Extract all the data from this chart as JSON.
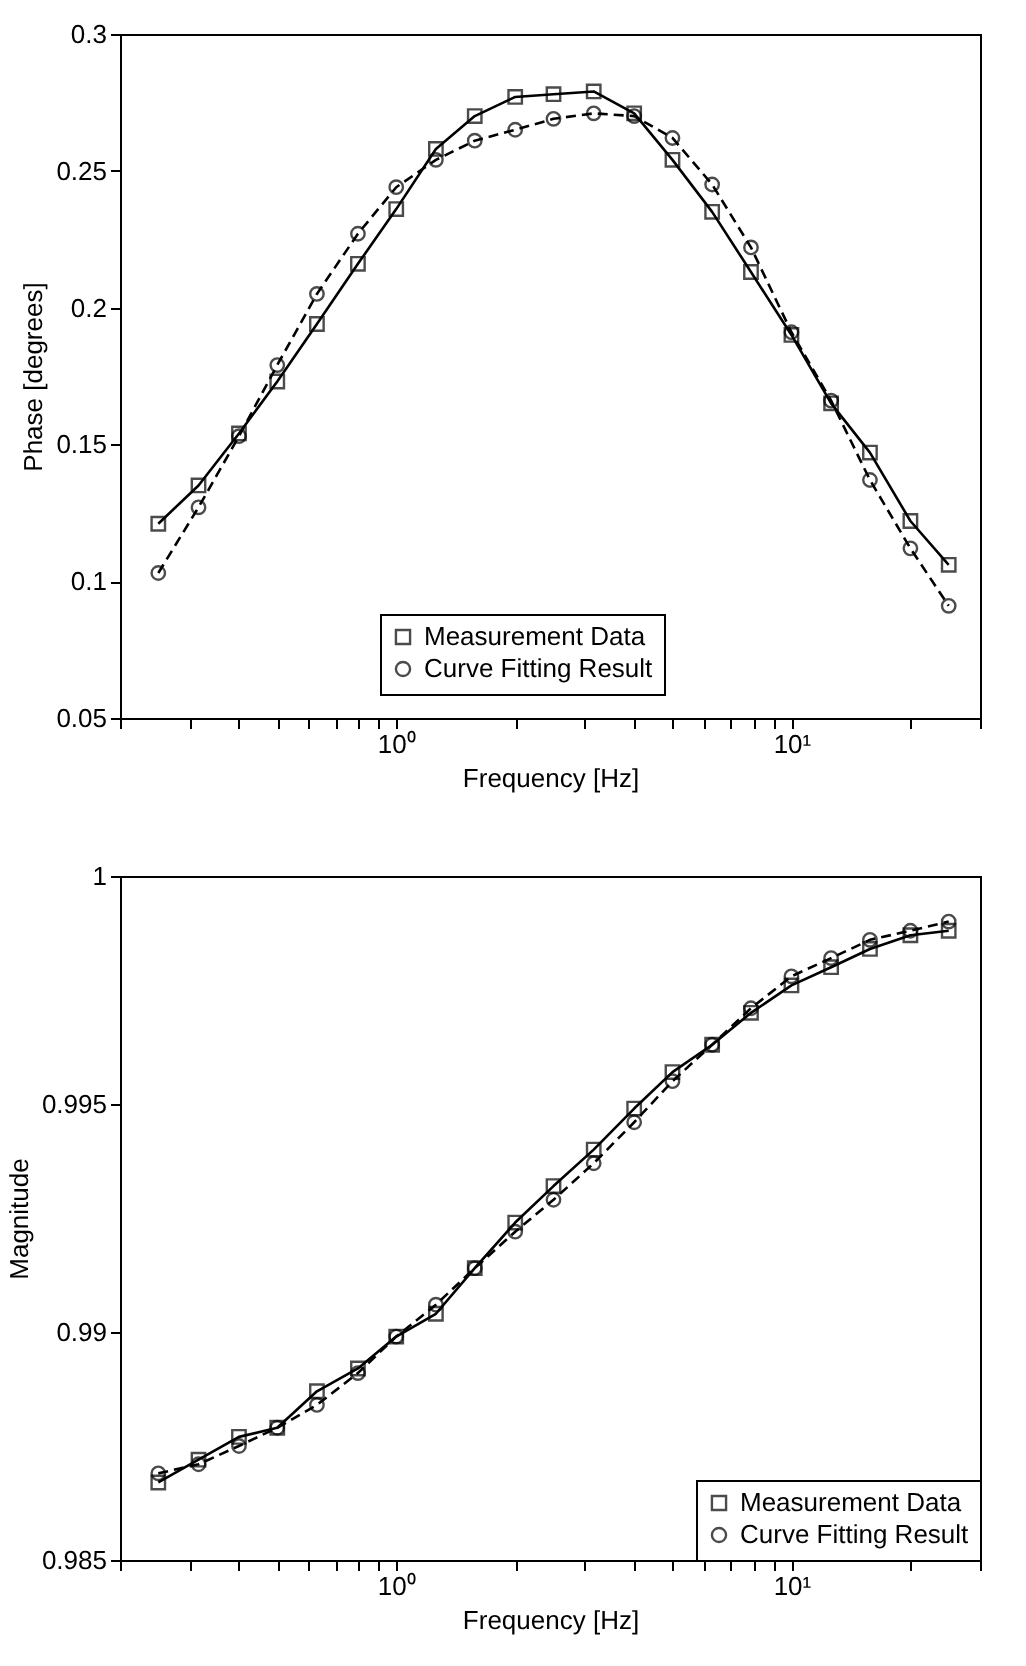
{
  "chart_data": [
    {
      "type": "line",
      "xlabel": "Frequency [Hz]",
      "ylabel": "Phase [degrees]",
      "log": "x",
      "grid": false,
      "legend": "bottom",
      "xlim": [
        0.2,
        30
      ],
      "ylim": [
        0.05,
        0.3
      ],
      "yticks": [
        0.05,
        0.1,
        0.15,
        0.2,
        0.25,
        0.3
      ],
      "xticks": [
        {
          "value": 0.2,
          "label": null
        },
        {
          "value": 0.3,
          "label": null
        },
        {
          "value": 0.4,
          "label": null
        },
        {
          "value": 0.5,
          "label": null
        },
        {
          "value": 0.6,
          "label": null
        },
        {
          "value": 0.7,
          "label": null
        },
        {
          "value": 0.8,
          "label": null
        },
        {
          "value": 0.9,
          "label": null
        },
        {
          "value": 1,
          "label": "10⁰"
        },
        {
          "value": 2,
          "label": null
        },
        {
          "value": 3,
          "label": null
        },
        {
          "value": 4,
          "label": null
        },
        {
          "value": 5,
          "label": null
        },
        {
          "value": 6,
          "label": null
        },
        {
          "value": 7,
          "label": null
        },
        {
          "value": 8,
          "label": null
        },
        {
          "value": 9,
          "label": null
        },
        {
          "value": 10,
          "label": "10¹"
        },
        {
          "value": 20,
          "label": null
        },
        {
          "value": 30,
          "label": null
        }
      ],
      "x": [
        0.25,
        0.316,
        0.4,
        0.5,
        0.63,
        0.8,
        1,
        1.26,
        1.58,
        2,
        2.5,
        3.16,
        4,
        5,
        6.3,
        7.9,
        10,
        12.6,
        15.8,
        20,
        25
      ],
      "series": [
        {
          "name": "Measurement Data",
          "color": "#000000",
          "marker": "square",
          "line_style": "solid",
          "values": [
            0.121,
            0.135,
            0.154,
            0.173,
            0.194,
            0.216,
            0.236,
            0.258,
            0.27,
            0.277,
            0.278,
            0.279,
            0.271,
            0.254,
            0.235,
            0.213,
            0.19,
            0.165,
            0.147,
            0.122,
            0.106
          ]
        },
        {
          "name": "Curve Fitting Result",
          "color": "#000000",
          "marker": "circle",
          "line_style": "dashed",
          "values": [
            0.103,
            0.127,
            0.153,
            0.179,
            0.205,
            0.227,
            0.244,
            0.254,
            0.261,
            0.265,
            0.269,
            0.271,
            0.27,
            0.262,
            0.245,
            0.222,
            0.191,
            0.166,
            0.137,
            0.112,
            0.091
          ]
        }
      ]
    },
    {
      "type": "line",
      "xlabel": "Frequency [Hz]",
      "ylabel": "Magnitude",
      "log": "x",
      "grid": false,
      "legend": "bottom right",
      "xlim": [
        0.2,
        30
      ],
      "ylim": [
        0.985,
        1
      ],
      "yticks": [
        0.985,
        0.99,
        0.995,
        1
      ],
      "xticks": [
        {
          "value": 0.2,
          "label": null
        },
        {
          "value": 0.3,
          "label": null
        },
        {
          "value": 0.4,
          "label": null
        },
        {
          "value": 0.5,
          "label": null
        },
        {
          "value": 0.6,
          "label": null
        },
        {
          "value": 0.7,
          "label": null
        },
        {
          "value": 0.8,
          "label": null
        },
        {
          "value": 0.9,
          "label": null
        },
        {
          "value": 1,
          "label": "10⁰"
        },
        {
          "value": 2,
          "label": null
        },
        {
          "value": 3,
          "label": null
        },
        {
          "value": 4,
          "label": null
        },
        {
          "value": 5,
          "label": null
        },
        {
          "value": 6,
          "label": null
        },
        {
          "value": 7,
          "label": null
        },
        {
          "value": 8,
          "label": null
        },
        {
          "value": 9,
          "label": null
        },
        {
          "value": 10,
          "label": "10¹"
        },
        {
          "value": 20,
          "label": null
        },
        {
          "value": 30,
          "label": null
        }
      ],
      "x": [
        0.25,
        0.316,
        0.4,
        0.5,
        0.63,
        0.8,
        1,
        1.26,
        1.58,
        2,
        2.5,
        3.16,
        4,
        5,
        6.3,
        7.9,
        10,
        12.6,
        15.8,
        20,
        25
      ],
      "series": [
        {
          "name": "Measurement Data",
          "color": "#000000",
          "marker": "square",
          "line_style": "solid",
          "values": [
            0.9867,
            0.9872,
            0.9877,
            0.9879,
            0.9887,
            0.9892,
            0.9899,
            0.9904,
            0.9914,
            0.9924,
            0.9932,
            0.994,
            0.9949,
            0.9957,
            0.9963,
            0.997,
            0.9976,
            0.998,
            0.9984,
            0.9987,
            0.9988
          ]
        },
        {
          "name": "Curve Fitting Result",
          "color": "#000000",
          "marker": "circle",
          "line_style": "dashed",
          "values": [
            0.9869,
            0.9871,
            0.9875,
            0.9879,
            0.9884,
            0.9891,
            0.9899,
            0.9906,
            0.9914,
            0.9922,
            0.9929,
            0.9937,
            0.9946,
            0.9955,
            0.9963,
            0.9971,
            0.9978,
            0.9982,
            0.9986,
            0.9988,
            0.999
          ]
        }
      ]
    }
  ]
}
